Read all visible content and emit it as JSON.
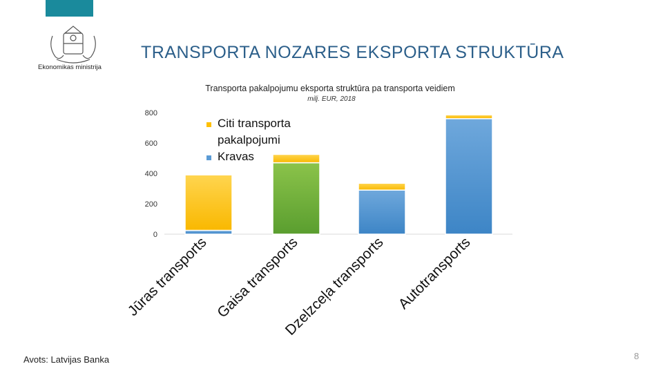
{
  "header": {
    "logo_text": "Ekonomikas ministrija",
    "accent_color": "#1a8a9c"
  },
  "slide": {
    "title": "TRANSPORTA NOZARES EKSPORTA STRUKTŪRA",
    "source": "Avots: Latvijas Banka",
    "page_number": "8"
  },
  "chart_data": {
    "type": "bar",
    "stacked": true,
    "title": "Transporta pakalpojumu eksporta struktūra pa transporta veidiem",
    "subtitle": "milj. EUR, 2018",
    "categories": [
      "Jūras transports",
      "Gaisa transports",
      "Dzelzceļa transports",
      "Autotransports"
    ],
    "series": [
      {
        "name": "Kravas",
        "color": "#5b9bd5",
        "values": [
          25,
          470,
          290,
          760
        ]
      },
      {
        "name": "Citi transporta pakalpojumi",
        "color": "#ffc000",
        "values": [
          365,
          55,
          45,
          25
        ]
      }
    ],
    "ylim": [
      0,
      800
    ],
    "yticks": [
      "0",
      "200",
      "400",
      "600",
      "800"
    ],
    "legend": [
      "Citi transporta pakalpojumi",
      "Kravas"
    ],
    "legend_placement": "top-left"
  }
}
